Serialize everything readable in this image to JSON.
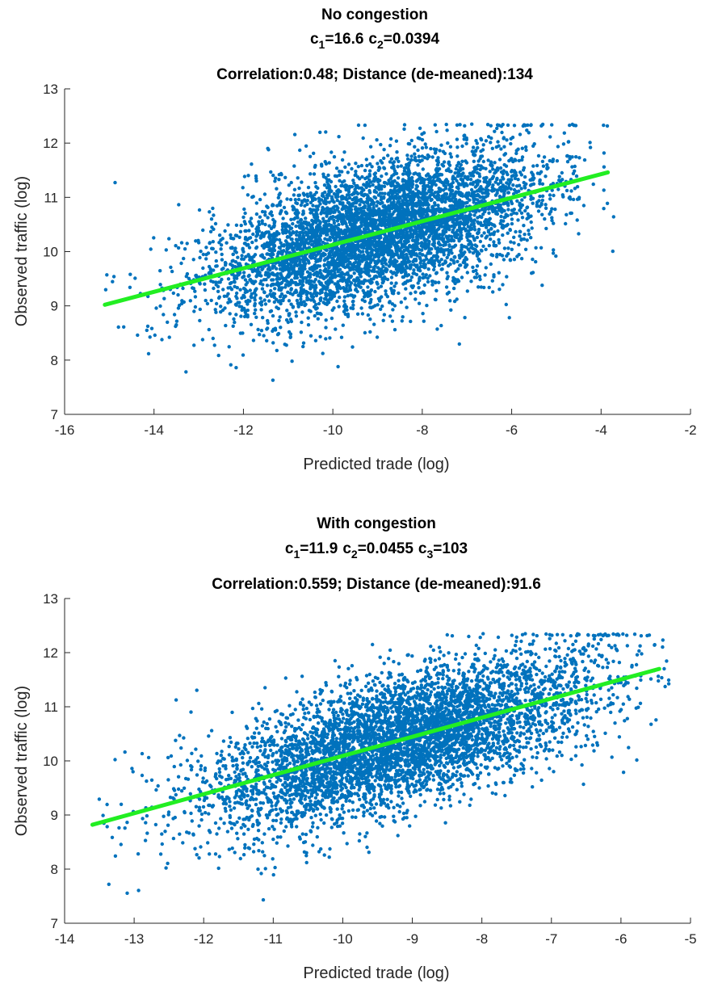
{
  "chart_data": [
    {
      "type": "scatter",
      "title_line1": "No congestion",
      "params": [
        {
          "sym": "c",
          "sub": "1",
          "val": "=16.6"
        },
        {
          "sym": "c",
          "sub": "2",
          "val": "=0.0394"
        }
      ],
      "title_line3": "Correlation:0.48; Distance (de-meaned):134",
      "xlabel": "Predicted trade (log)",
      "ylabel": "Observed traffic (log)",
      "xlim": [
        -16,
        -2
      ],
      "ylim": [
        7,
        13
      ],
      "xticks": [
        -16,
        -14,
        -12,
        -10,
        -8,
        -6,
        -4,
        -2
      ],
      "yticks": [
        7,
        8,
        9,
        10,
        11,
        12,
        13
      ],
      "grid": false,
      "point_color": "#0072BD",
      "fit_color": "#22EE22",
      "fit_line": {
        "x": [
          -15.1,
          -3.85
        ],
        "y": [
          9.02,
          11.46
        ]
      },
      "scatter_cloud": {
        "n_points": 5200,
        "x_center": -9.0,
        "x_sd": 1.9,
        "slope": 0.217,
        "resid_sd": 0.65,
        "y_cap": 12.35,
        "seed": 11
      }
    },
    {
      "type": "scatter",
      "title_line1": "With congestion",
      "params": [
        {
          "sym": "c",
          "sub": "1",
          "val": "=11.9"
        },
        {
          "sym": "c",
          "sub": "2",
          "val": "=0.0455"
        },
        {
          "sym": "c",
          "sub": "3",
          "val": "=103"
        }
      ],
      "title_line3": "Correlation:0.559; Distance (de-meaned):91.6",
      "xlabel": "Predicted trade (log)",
      "ylabel": "Observed traffic (log)",
      "xlim": [
        -14,
        -5
      ],
      "ylim": [
        7,
        13
      ],
      "xticks": [
        -14,
        -13,
        -12,
        -11,
        -10,
        -9,
        -8,
        -7,
        -6,
        -5
      ],
      "yticks": [
        7,
        8,
        9,
        10,
        11,
        12,
        13
      ],
      "grid": false,
      "point_color": "#0072BD",
      "fit_color": "#22EE22",
      "fit_line": {
        "x": [
          -13.6,
          -5.45
        ],
        "y": [
          8.82,
          11.7
        ]
      },
      "scatter_cloud": {
        "n_points": 5200,
        "x_center": -9.2,
        "x_sd": 1.45,
        "slope": 0.353,
        "resid_sd": 0.6,
        "y_cap": 12.35,
        "seed": 29
      }
    }
  ]
}
